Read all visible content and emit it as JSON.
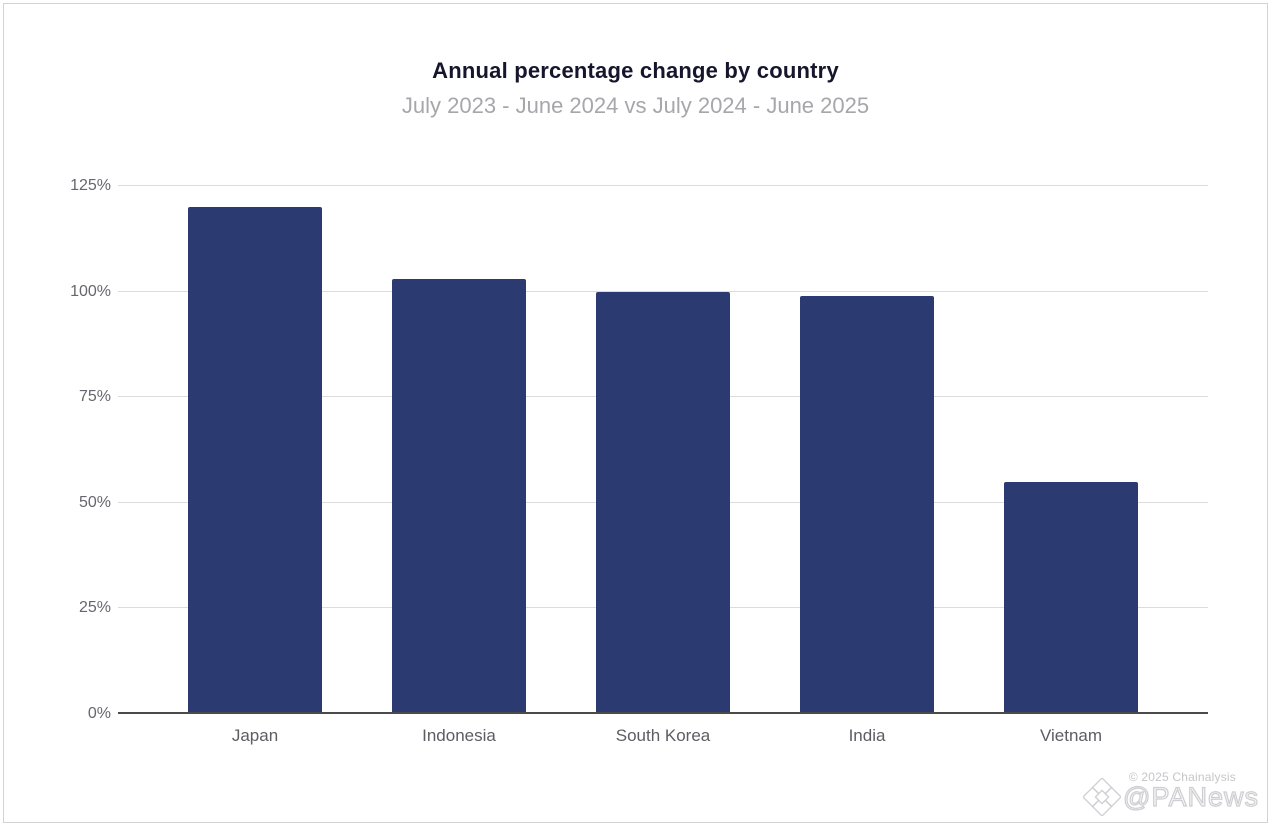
{
  "chart_data": {
    "type": "bar",
    "title": "Annual percentage change by country",
    "subtitle": "July 2023 - June 2024 vs July 2024 - June 2025",
    "categories": [
      "Japan",
      "Indonesia",
      "South Korea",
      "India",
      "Vietnam"
    ],
    "values": [
      120,
      103,
      100,
      99,
      55
    ],
    "value_unit": "%",
    "ylim": [
      0,
      125
    ],
    "yticks": [
      0,
      25,
      50,
      75,
      100,
      125
    ],
    "ytick_labels": [
      "0%",
      "25%",
      "50%",
      "75%",
      "100%",
      "125%"
    ],
    "xlabel": "",
    "ylabel": "",
    "grid": true,
    "legend": "none",
    "colors": {
      "bar": "#2b3a70",
      "gridline": "#dcdcde",
      "axis_line": "#4a4a4a",
      "title": "#15152c",
      "subtitle": "#a7a7ab",
      "ytick": "#66666e",
      "xtick": "#5c5c63",
      "background": "#ffffff",
      "frame_border": "#d3d3d5"
    }
  },
  "footer": {
    "copyright": "© 2025 Chainalysis",
    "watermark_at": "@",
    "watermark_name": "PANews",
    "logo_icon": "panews-diamond-logo"
  }
}
